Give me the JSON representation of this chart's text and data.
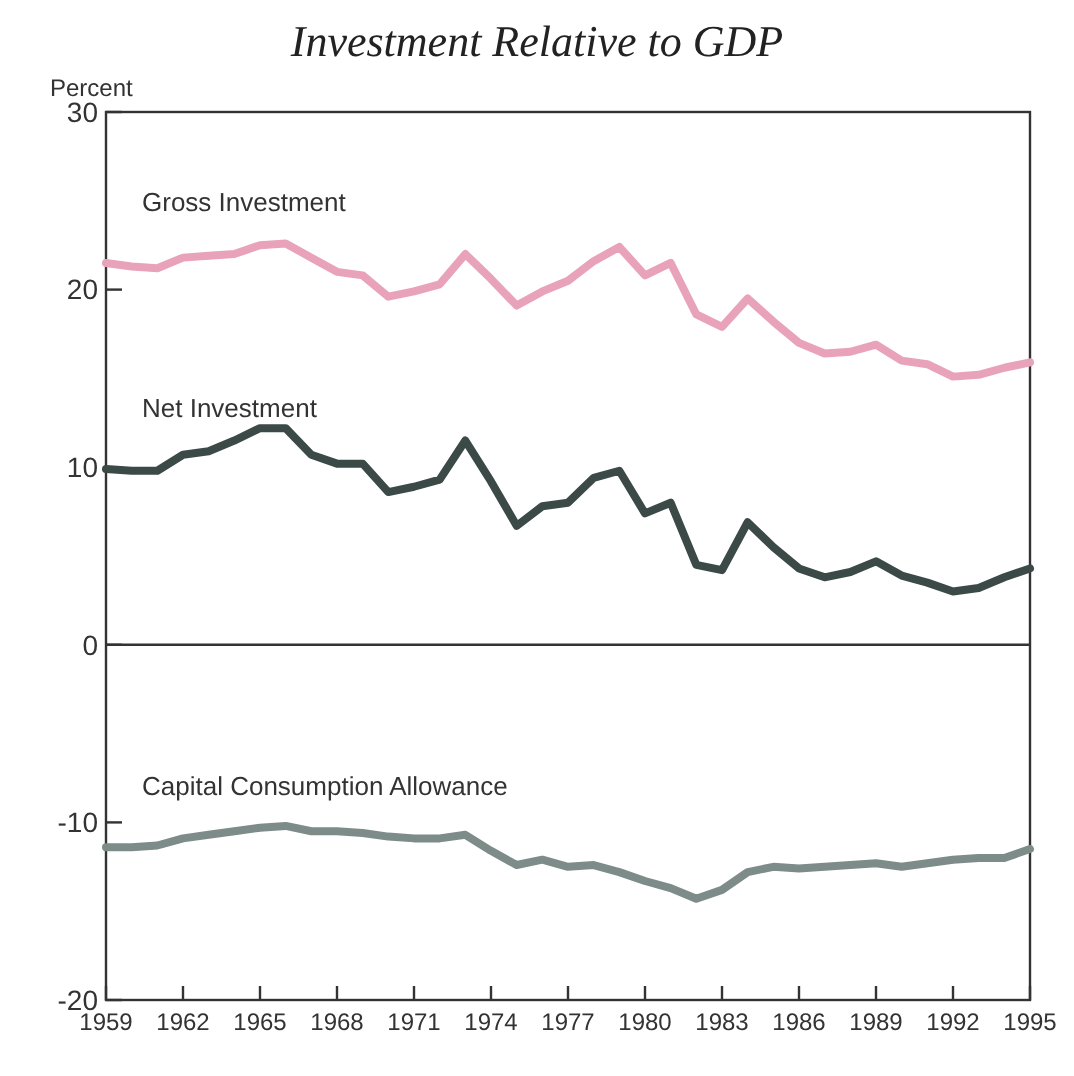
{
  "chart_data": {
    "type": "line",
    "title": "Investment Relative to GDP",
    "ylabel": "Percent",
    "x": [
      1959,
      1960,
      1961,
      1962,
      1963,
      1964,
      1965,
      1966,
      1967,
      1968,
      1969,
      1970,
      1971,
      1972,
      1973,
      1974,
      1975,
      1976,
      1977,
      1978,
      1979,
      1980,
      1981,
      1982,
      1983,
      1984,
      1985,
      1986,
      1987,
      1988,
      1989,
      1990,
      1991,
      1992,
      1993,
      1994,
      1995
    ],
    "series": [
      {
        "name": "Gross Investment",
        "color": "#e8a3bb",
        "values": [
          21.5,
          21.3,
          21.2,
          21.8,
          21.9,
          22.0,
          22.5,
          22.6,
          21.8,
          21.0,
          20.8,
          19.6,
          19.9,
          20.3,
          22.0,
          20.6,
          19.1,
          19.9,
          20.5,
          21.6,
          22.4,
          20.8,
          21.5,
          18.6,
          17.9,
          19.5,
          18.2,
          17.0,
          16.4,
          16.5,
          16.9,
          16.0,
          15.8,
          15.1,
          15.2,
          15.6,
          15.9
        ]
      },
      {
        "name": "Net Investment",
        "color": "#3b4947",
        "values": [
          9.9,
          9.8,
          9.8,
          10.7,
          10.9,
          11.5,
          12.2,
          12.2,
          10.7,
          10.2,
          10.2,
          8.6,
          8.9,
          9.3,
          11.5,
          9.2,
          6.7,
          7.8,
          8.0,
          9.4,
          9.8,
          7.4,
          8.0,
          4.5,
          4.2,
          6.9,
          5.5,
          4.3,
          3.8,
          4.1,
          4.7,
          3.9,
          3.5,
          3.0,
          3.2,
          3.8,
          4.3
        ]
      },
      {
        "name": "Capital Consumption Allowance",
        "color": "#7d8b89",
        "values": [
          -11.4,
          -11.4,
          -11.3,
          -10.9,
          -10.7,
          -10.5,
          -10.3,
          -10.2,
          -10.5,
          -10.5,
          -10.6,
          -10.8,
          -10.9,
          -10.9,
          -10.7,
          -11.6,
          -12.4,
          -12.1,
          -12.5,
          -12.4,
          -12.8,
          -13.3,
          -13.7,
          -14.3,
          -13.8,
          -12.8,
          -12.5,
          -12.6,
          -12.5,
          -12.4,
          -12.3,
          -12.5,
          -12.3,
          -12.1,
          -12.0,
          -12.0,
          -11.5
        ]
      }
    ],
    "xlim": [
      1959,
      1995
    ],
    "xticks": [
      1959,
      1962,
      1965,
      1968,
      1971,
      1974,
      1977,
      1980,
      1983,
      1986,
      1989,
      1992,
      1995
    ],
    "ylim": [
      -20,
      30
    ],
    "yticks": [
      -20,
      -10,
      0,
      10,
      20,
      30
    ],
    "ref_lines": [
      {
        "axis": "y",
        "value": 0,
        "color": "#333333"
      }
    ],
    "grid": false,
    "line_style": "solid",
    "marker": "none"
  }
}
